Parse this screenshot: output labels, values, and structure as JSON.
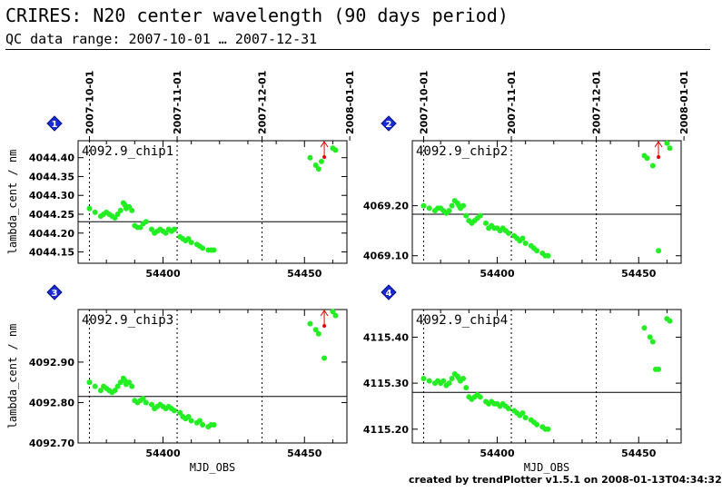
{
  "header": {
    "title": "CRIRES: N20 center wavelength (90 days period)",
    "subtitle": "QC data range: 2007-10-01 … 2007-12-31"
  },
  "footer": {
    "credit": "created by trendPlotter v1.5.1 on 2008-01-13T04:34:32"
  },
  "colors": {
    "points": "#22ee22",
    "outlier": "#dd0000",
    "badge": "#1a2bd6",
    "axis": "#000000"
  },
  "chart_data": [
    {
      "type": "scatter",
      "badge": "1",
      "panel_label": "4092.9_chip1",
      "ylabel": "lambda_cent / nm",
      "xlabel": "",
      "xlim": [
        54370,
        54465
      ],
      "ylim": [
        44.12,
        44.445
      ],
      "y_tick_values": [
        44.15,
        44.2,
        44.25,
        44.3,
        44.35,
        44.4
      ],
      "y_tick_labels": [
        "4044.15",
        "4044.20",
        "4044.25",
        "4044.30",
        "4044.35",
        "4044.40"
      ],
      "x_tick_values": [
        54400,
        54450
      ],
      "x_tick_labels": [
        "54400",
        "54450"
      ],
      "reference_line": 44.23,
      "top_date_ticks": [
        {
          "mjd": 54374,
          "label": "2007-10-01"
        },
        {
          "mjd": 54405,
          "label": "2007-11-01"
        },
        {
          "mjd": 54435,
          "label": "2007-12-01"
        },
        {
          "mjd": 54466,
          "label": "2008-01-01"
        }
      ],
      "outlier_markers": [
        54457
      ],
      "x": [
        54374,
        54376,
        54378,
        54379,
        54380,
        54381,
        54382,
        54383,
        54384,
        54385,
        54386,
        54386.5,
        54387,
        54388,
        54389,
        54390,
        54391,
        54392,
        54393,
        54394,
        54396,
        54397,
        54398,
        54399,
        54400,
        54401,
        54402,
        54403,
        54404,
        54406,
        54407,
        54408,
        54409,
        54410,
        54412,
        54413,
        54414,
        54416,
        54417,
        54418,
        54452,
        54454,
        54455,
        54456,
        54460,
        54461
      ],
      "y": [
        44.265,
        44.255,
        44.245,
        44.25,
        44.255,
        44.25,
        44.245,
        44.24,
        44.25,
        44.26,
        44.28,
        44.275,
        44.265,
        44.27,
        44.26,
        44.22,
        44.215,
        44.215,
        44.225,
        44.23,
        44.21,
        44.2,
        44.205,
        44.21,
        44.205,
        44.2,
        44.21,
        44.205,
        44.21,
        44.19,
        44.185,
        44.18,
        44.185,
        44.175,
        44.17,
        44.165,
        44.16,
        44.155,
        44.155,
        44.155,
        44.4,
        44.38,
        44.37,
        44.39,
        44.425,
        44.42
      ]
    },
    {
      "type": "scatter",
      "badge": "2",
      "panel_label": "4092.9_chip2",
      "ylabel": "",
      "xlabel": "",
      "xlim": [
        54370,
        54465
      ],
      "ylim": [
        69.085,
        69.33
      ],
      "y_tick_values": [
        69.1,
        69.2
      ],
      "y_tick_labels": [
        "4069.10",
        "4069.20"
      ],
      "x_tick_values": [
        54400,
        54450
      ],
      "x_tick_labels": [
        "54400",
        "54450"
      ],
      "reference_line": 69.183,
      "top_date_ticks": [
        {
          "mjd": 54374,
          "label": "2007-10-01"
        },
        {
          "mjd": 54405,
          "label": "2007-11-01"
        },
        {
          "mjd": 54435,
          "label": "2007-12-01"
        },
        {
          "mjd": 54466,
          "label": "2008-01-01"
        }
      ],
      "outlier_markers": [
        54457
      ],
      "x": [
        54374,
        54376,
        54378,
        54379,
        54380,
        54381,
        54382,
        54383,
        54384,
        54385,
        54386,
        54386.5,
        54387,
        54388,
        54389,
        54390,
        54391,
        54392,
        54393,
        54394,
        54396,
        54397,
        54398,
        54399,
        54400,
        54401,
        54402,
        54403,
        54404,
        54406,
        54407,
        54408,
        54409,
        54410,
        54412,
        54413,
        54414,
        54416,
        54417,
        54418,
        54452,
        54453,
        54455,
        54457,
        54460,
        54461
      ],
      "y": [
        69.2,
        69.195,
        69.19,
        69.195,
        69.195,
        69.19,
        69.185,
        69.19,
        69.2,
        69.21,
        69.205,
        69.2,
        69.195,
        69.2,
        69.18,
        69.17,
        69.165,
        69.17,
        69.175,
        69.18,
        69.165,
        69.155,
        69.16,
        69.155,
        69.155,
        69.15,
        69.155,
        69.15,
        69.145,
        69.14,
        69.135,
        69.13,
        69.135,
        69.125,
        69.12,
        69.115,
        69.11,
        69.105,
        69.1,
        69.1,
        69.3,
        69.295,
        69.28,
        69.11,
        69.325,
        69.315
      ]
    },
    {
      "type": "scatter",
      "badge": "3",
      "panel_label": "4092.9_chip3",
      "ylabel": "lambda_cent / nm",
      "xlabel": "MJD_OBS",
      "xlim": [
        54370,
        54465
      ],
      "ylim": [
        92.7,
        93.03
      ],
      "y_tick_values": [
        92.7,
        92.8,
        92.9
      ],
      "y_tick_labels": [
        "4092.70",
        "4092.80",
        "4092.90"
      ],
      "x_tick_values": [
        54400,
        54450
      ],
      "x_tick_labels": [
        "54400",
        "54450"
      ],
      "reference_line": 92.815,
      "top_date_ticks": [],
      "outlier_markers": [
        54457
      ],
      "x": [
        54374,
        54376,
        54378,
        54379,
        54380,
        54381,
        54382,
        54383,
        54384,
        54385,
        54386,
        54386.5,
        54387,
        54388,
        54389,
        54390,
        54391,
        54392,
        54393,
        54394,
        54396,
        54397,
        54398,
        54399,
        54400,
        54401,
        54402,
        54403,
        54404,
        54406,
        54407,
        54408,
        54409,
        54410,
        54412,
        54413,
        54414,
        54416,
        54417,
        54418,
        54452,
        54454,
        54455,
        54457,
        54460,
        54461
      ],
      "y": [
        92.85,
        92.84,
        92.83,
        92.84,
        92.835,
        92.83,
        92.825,
        92.83,
        92.84,
        92.85,
        92.86,
        92.855,
        92.845,
        92.85,
        92.84,
        92.805,
        92.8,
        92.805,
        92.81,
        92.8,
        92.795,
        92.785,
        92.79,
        92.795,
        92.79,
        92.785,
        92.79,
        92.785,
        92.78,
        92.775,
        92.765,
        92.76,
        92.765,
        92.755,
        92.75,
        92.755,
        92.745,
        92.74,
        92.745,
        92.745,
        92.995,
        92.98,
        92.97,
        92.91,
        93.025,
        93.015
      ]
    },
    {
      "type": "scatter",
      "badge": "4",
      "panel_label": "4092.9_chip4",
      "ylabel": "",
      "xlabel": "MJD_OBS",
      "xlim": [
        54370,
        54465
      ],
      "ylim": [
        115.17,
        115.46
      ],
      "y_tick_values": [
        115.2,
        115.3,
        115.4
      ],
      "y_tick_labels": [
        "4115.20",
        "4115.30",
        "4115.40"
      ],
      "x_tick_values": [
        54400,
        54450
      ],
      "x_tick_labels": [
        "54400",
        "54450"
      ],
      "reference_line": 115.28,
      "top_date_ticks": [],
      "outlier_markers": [],
      "x": [
        54374,
        54376,
        54378,
        54379,
        54380,
        54381,
        54382,
        54383,
        54384,
        54385,
        54386,
        54386.5,
        54387,
        54388,
        54389,
        54390,
        54391,
        54392,
        54393,
        54394,
        54396,
        54397,
        54398,
        54399,
        54400,
        54401,
        54402,
        54403,
        54404,
        54406,
        54407,
        54408,
        54409,
        54410,
        54412,
        54413,
        54414,
        54416,
        54417,
        54418,
        54452,
        54454,
        54455,
        54456,
        54457,
        54460,
        54461
      ],
      "y": [
        115.31,
        115.305,
        115.3,
        115.305,
        115.3,
        115.305,
        115.295,
        115.3,
        115.31,
        115.32,
        115.315,
        115.31,
        115.305,
        115.31,
        115.29,
        115.27,
        115.265,
        115.27,
        115.275,
        115.27,
        115.26,
        115.255,
        115.26,
        115.255,
        115.255,
        115.25,
        115.255,
        115.25,
        115.245,
        115.24,
        115.235,
        115.23,
        115.235,
        115.225,
        115.22,
        115.215,
        115.21,
        115.205,
        115.2,
        115.2,
        115.42,
        115.4,
        115.39,
        115.33,
        115.33,
        115.44,
        115.435
      ]
    }
  ]
}
